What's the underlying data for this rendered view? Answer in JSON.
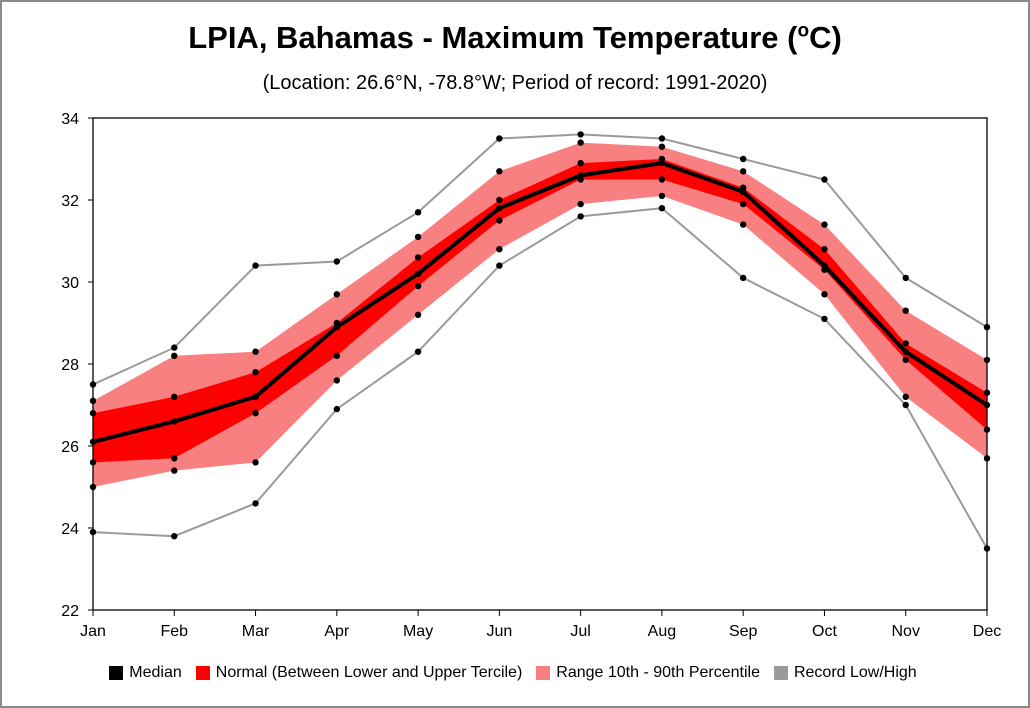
{
  "title": {
    "main": "LPIA, Bahamas - Maximum Temperature (",
    "sup": "o",
    "end": "C)"
  },
  "subtitle": "(Location: 26.6°N, -78.8°W; Period of record: 1991-2020)",
  "colors": {
    "median": "#000000",
    "normal": "#ff0000",
    "range": "#f98080",
    "record": "#9a9a9a",
    "dots": "#000000"
  },
  "legend": [
    {
      "label": "Median",
      "color": "#000000"
    },
    {
      "label": "Normal (Between Lower and Upper Tercile)",
      "color": "#ff0000"
    },
    {
      "label": "Range 10th - 90th Percentile",
      "color": "#f98080"
    },
    {
      "label": "Record Low/High",
      "color": "#9a9a9a"
    }
  ],
  "chart_data": {
    "type": "line",
    "title": "LPIA, Bahamas - Maximum Temperature (oC)",
    "subtitle": "(Location: 26.6°N, -78.8°W; Period of record: 1991-2020)",
    "categories": [
      "Jan",
      "Feb",
      "Mar",
      "Apr",
      "May",
      "Jun",
      "Jul",
      "Aug",
      "Sep",
      "Oct",
      "Nov",
      "Dec"
    ],
    "ylim": [
      22,
      34
    ],
    "yticks": [
      22,
      24,
      26,
      28,
      30,
      32,
      34
    ],
    "series": [
      {
        "name": "Record Low/High",
        "role": "record_high",
        "values": [
          27.5,
          28.4,
          30.4,
          30.5,
          31.7,
          33.5,
          33.6,
          33.5,
          33.0,
          32.5,
          30.1,
          28.9
        ]
      },
      {
        "name": "Range 10th - 90th Percentile",
        "role": "p90",
        "values": [
          27.1,
          28.2,
          28.3,
          29.7,
          31.1,
          32.7,
          33.4,
          33.3,
          32.7,
          31.4,
          29.3,
          28.1
        ]
      },
      {
        "name": "Normal (Between Lower and Upper Tercile)",
        "role": "upper_tercile",
        "values": [
          26.8,
          27.2,
          27.8,
          29.0,
          30.6,
          32.0,
          32.9,
          33.0,
          32.3,
          30.8,
          28.5,
          27.3
        ]
      },
      {
        "name": "Median",
        "role": "median",
        "values": [
          26.1,
          26.6,
          27.2,
          28.9,
          30.2,
          31.8,
          32.6,
          32.9,
          32.2,
          30.4,
          28.3,
          27.0
        ]
      },
      {
        "name": "Normal (Between Lower and Upper Tercile)",
        "role": "lower_tercile",
        "values": [
          25.6,
          25.7,
          26.8,
          28.2,
          29.9,
          31.5,
          32.5,
          32.5,
          31.9,
          30.3,
          28.1,
          26.4
        ]
      },
      {
        "name": "Range 10th - 90th Percentile",
        "role": "p10",
        "values": [
          25.0,
          25.4,
          25.6,
          27.6,
          29.2,
          30.8,
          31.9,
          32.1,
          31.4,
          29.7,
          27.2,
          25.7
        ]
      },
      {
        "name": "Record Low/High",
        "role": "record_low",
        "values": [
          23.9,
          23.8,
          24.6,
          26.9,
          28.3,
          30.4,
          31.6,
          31.8,
          30.1,
          29.1,
          27.0,
          23.5
        ]
      }
    ],
    "legend_position": "bottom",
    "grid": false
  }
}
